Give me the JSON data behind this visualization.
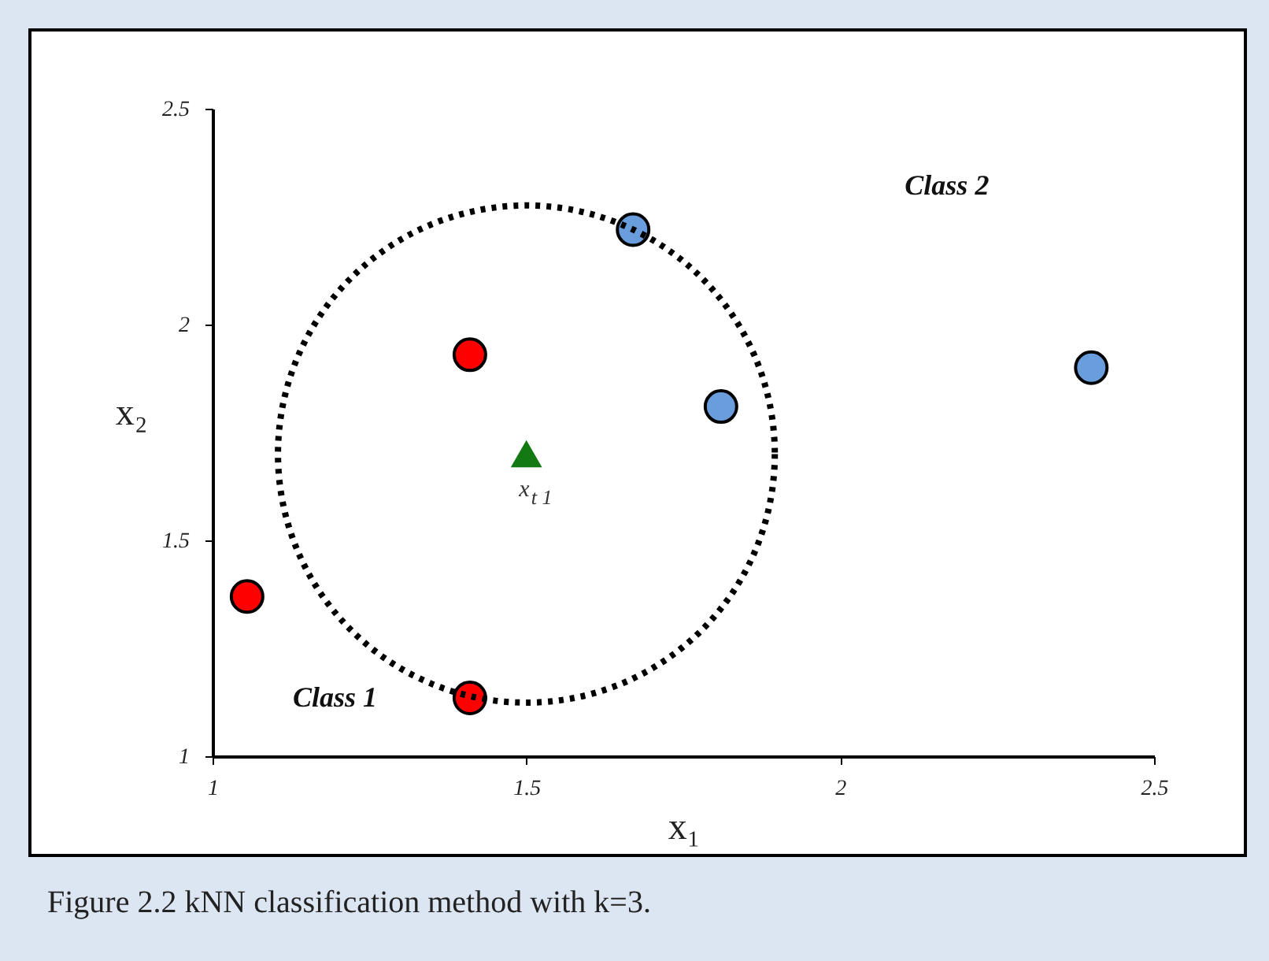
{
  "chart_data": {
    "type": "scatter",
    "xlabel": "x₁",
    "ylabel": "x₂",
    "xlim": [
      1,
      2.5
    ],
    "ylim": [
      1,
      2.5
    ],
    "xticks": [
      1,
      1.5,
      2,
      2.5
    ],
    "yticks": [
      1,
      1.5,
      2,
      2.5
    ],
    "grid": false,
    "marker": "circle",
    "series": [
      {
        "color": "#ff0000",
        "x": [
          1.41,
          1.055,
          1.41
        ],
        "values": [
          1.93,
          1.37,
          1.135
        ]
      },
      {
        "color": "#6a9ddb",
        "x": [
          1.67,
          1.81,
          2.4
        ],
        "values": [
          2.22,
          1.81,
          1.9
        ]
      },
      {
        "color": "#137a13",
        "x": [
          1.5
        ],
        "values": [
          1.7
        ],
        "marker": "triangle"
      }
    ],
    "annotations": [
      "Class 1",
      "Class 2",
      {
        "text": "x$_{t 1}$",
        "x": 1.5,
        "y": 1.7
      },
      "Figure 2.2 kNN classification method with k=3."
    ]
  }
}
